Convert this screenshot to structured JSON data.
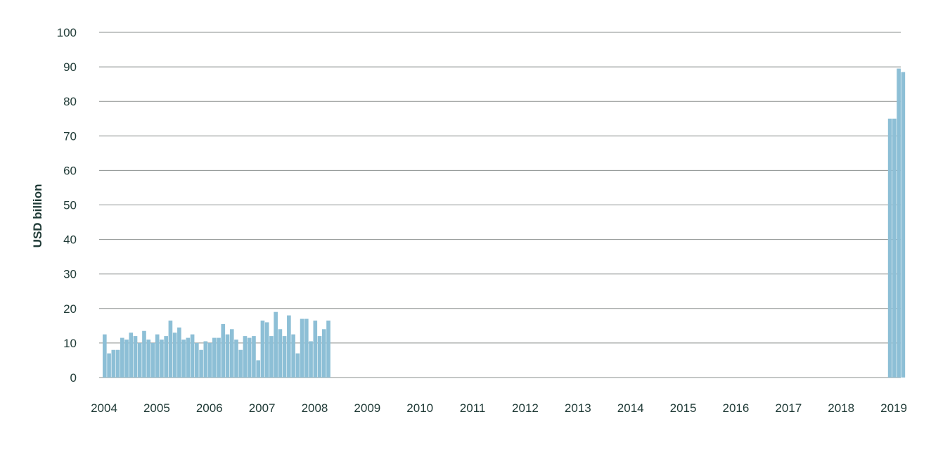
{
  "chart_data": {
    "type": "bar",
    "title": "",
    "xlabel": "",
    "ylabel": "USD billion",
    "ylim": [
      0,
      100
    ],
    "yticks": [
      0,
      10,
      20,
      30,
      40,
      50,
      60,
      70,
      80,
      90,
      100
    ],
    "xlim": [
      2004,
      2019.2
    ],
    "xticks": [
      "2004",
      "2005",
      "2006",
      "2007",
      "2008",
      "2009",
      "2010",
      "2011",
      "2012",
      "2013",
      "2014",
      "2015",
      "2016",
      "2017",
      "2018",
      "2019"
    ],
    "grid": true,
    "legend": "none",
    "bar_color": "#8dbfd6",
    "series": [
      {
        "x": [
          "2004-01",
          "2004-02",
          "2004-03",
          "2004-04",
          "2004-05",
          "2004-06",
          "2004-07",
          "2004-08",
          "2004-09",
          "2004-10",
          "2004-11",
          "2004-12",
          "2005-01",
          "2005-02",
          "2005-03",
          "2005-04",
          "2005-05",
          "2005-06",
          "2005-07",
          "2005-08",
          "2005-09",
          "2005-10",
          "2005-11",
          "2005-12",
          "2006-01",
          "2006-02",
          "2006-03",
          "2006-04",
          "2006-05",
          "2006-06",
          "2006-07",
          "2006-08",
          "2006-09",
          "2006-10",
          "2006-11",
          "2006-12",
          "2007-01",
          "2007-02",
          "2007-03",
          "2007-04",
          "2007-05",
          "2007-06",
          "2007-07",
          "2007-08",
          "2007-09",
          "2007-10",
          "2007-11",
          "2007-12",
          "2008-01",
          "2008-02",
          "2008-03",
          "2008-04",
          "2018-12",
          "2019-01",
          "2019-02",
          "2019-03"
        ],
        "values": [
          12.5,
          7,
          8,
          8,
          11.5,
          11,
          13,
          12,
          10,
          13.5,
          11,
          10,
          12.5,
          11,
          12,
          16.5,
          13,
          14.5,
          11,
          11.5,
          12.5,
          10,
          8,
          10.5,
          10,
          11.5,
          11.5,
          15.5,
          12.5,
          14,
          11,
          8,
          12,
          11.5,
          12,
          5,
          16.5,
          16,
          12,
          19,
          14,
          12,
          18,
          12.5,
          7,
          17,
          17,
          10.5,
          16.5,
          12,
          14,
          16.5,
          75,
          75,
          89.5,
          88.5
        ]
      }
    ],
    "annotations": []
  }
}
